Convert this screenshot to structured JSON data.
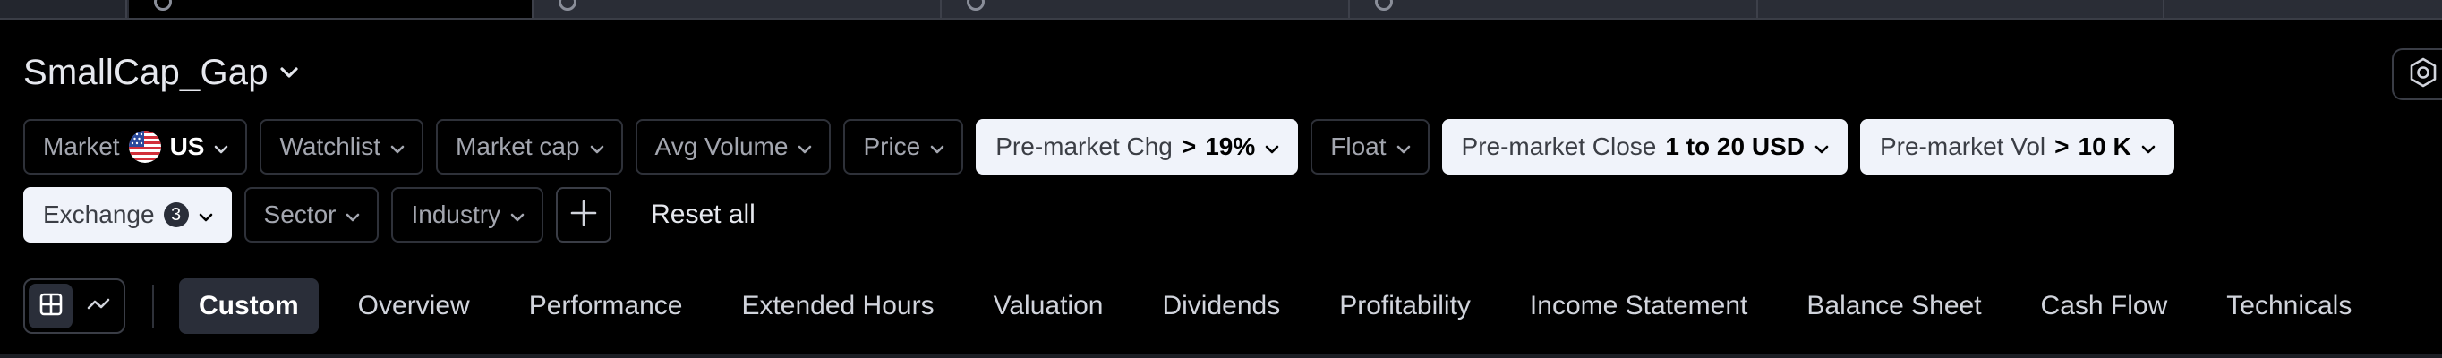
{
  "screener": {
    "name": "SmallCap_Gap"
  },
  "filters_row1": [
    {
      "label": "Market",
      "value": "US",
      "active": false,
      "flag": true
    },
    {
      "label": "Watchlist",
      "active": false
    },
    {
      "label": "Market cap",
      "active": false
    },
    {
      "label": "Avg Volume",
      "active": false
    },
    {
      "label": "Price",
      "active": false
    },
    {
      "label": "Pre-market Chg",
      "op": ">",
      "value": "19%",
      "active": true
    },
    {
      "label": "Float",
      "active": false
    },
    {
      "label": "Pre-market Close",
      "value": "1 to 20 USD",
      "active": true
    },
    {
      "label": "Pre-market Vol",
      "op": ">",
      "value": "10 K",
      "active": true
    }
  ],
  "filters_row2": [
    {
      "label": "Exchange",
      "badge": "3",
      "active": true
    },
    {
      "label": "Sector",
      "active": false
    },
    {
      "label": "Industry",
      "active": false
    }
  ],
  "actions": {
    "reset_label": "Reset all"
  },
  "view_tabs": [
    "Custom",
    "Overview",
    "Performance",
    "Extended Hours",
    "Valuation",
    "Dividends",
    "Profitability",
    "Income Statement",
    "Balance Sheet",
    "Cash Flow",
    "Technicals"
  ],
  "active_tab": "Custom",
  "colors": {
    "background": "#000000",
    "pill_active": "#f0f3fa",
    "tab_active": "#2a2e39"
  },
  "icons": {
    "title_chevron": "chevron-down-icon",
    "settings": "settings-icon",
    "add": "plus-icon",
    "table_view": "table-icon",
    "chart_view": "chart-line-icon",
    "flag": "us-flag-icon"
  }
}
